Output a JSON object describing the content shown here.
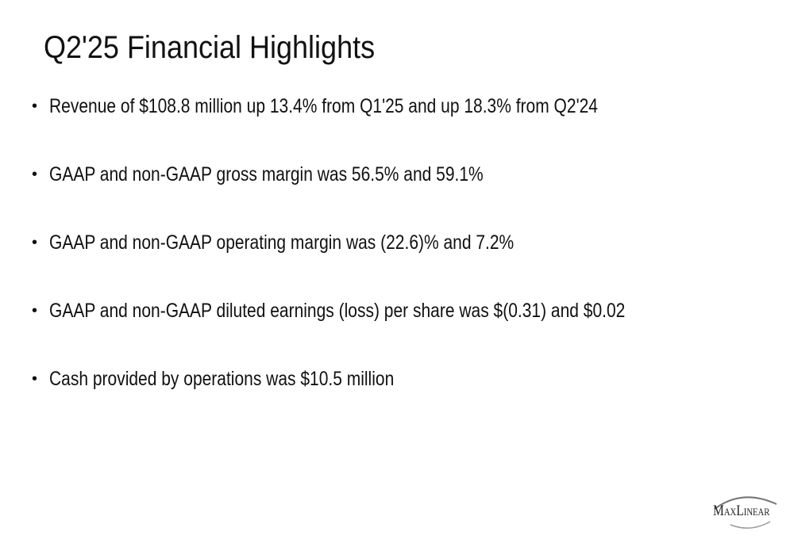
{
  "header": {
    "title": "Q2'25 Financial Highlights"
  },
  "bullets": [
    "Revenue of $108.8 million up 13.4% from Q1'25 and up 18.3% from Q2'24",
    "GAAP and non-GAAP gross margin was 56.5% and 59.1%",
    "GAAP and non-GAAP operating margin was (22.6)% and 7.2%",
    "GAAP and non-GAAP diluted earnings (loss) per share was $(0.31) and $0.02",
    "Cash provided by operations was $10.5 million"
  ],
  "logo": {
    "text": "MaxLinear"
  }
}
